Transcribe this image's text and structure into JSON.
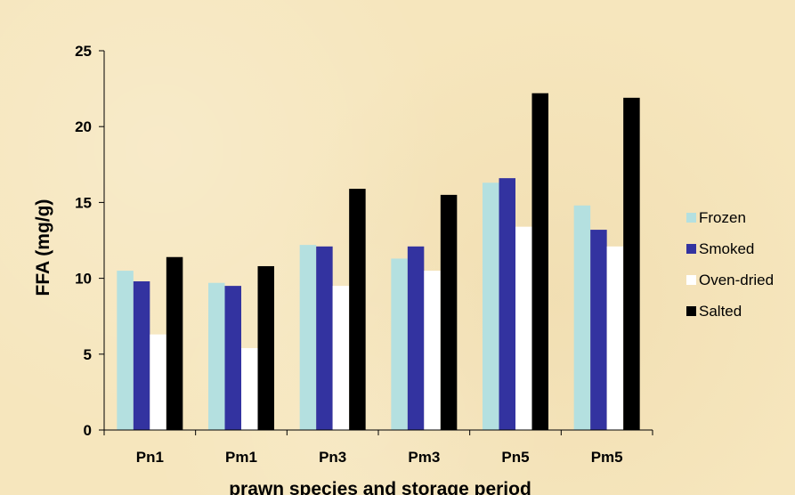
{
  "chart_data": {
    "type": "bar",
    "title": "",
    "xlabel": "prawn species and storage period",
    "ylabel": "FFA (mg/g)",
    "ylim": [
      0,
      25
    ],
    "yticks": [
      0,
      5,
      10,
      15,
      20,
      25
    ],
    "grid": false,
    "legend_position": "right",
    "categories": [
      "Pn1",
      "Pm1",
      "Pn3",
      "Pm3",
      "Pn5",
      "Pm5"
    ],
    "series": [
      {
        "name": "Frozen",
        "color": "#b4e0e0",
        "values": [
          10.5,
          9.7,
          12.2,
          11.3,
          16.3,
          14.8
        ]
      },
      {
        "name": "Smoked",
        "color": "#3333a0",
        "values": [
          9.8,
          9.5,
          12.1,
          12.1,
          16.6,
          13.2
        ]
      },
      {
        "name": "Oven-dried",
        "color": "#ffffff",
        "values": [
          6.3,
          5.4,
          9.5,
          10.5,
          13.4,
          12.1
        ]
      },
      {
        "name": "Salted",
        "color": "#000000",
        "values": [
          11.4,
          10.8,
          15.9,
          15.5,
          22.2,
          21.9
        ]
      }
    ]
  }
}
